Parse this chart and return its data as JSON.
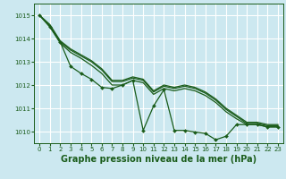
{
  "background_color": "#cce8f0",
  "grid_color": "#ffffff",
  "line_color": "#1a5c1a",
  "xlabel": "Graphe pression niveau de la mer (hPa)",
  "xlim": [
    -0.5,
    23.5
  ],
  "ylim": [
    1009.5,
    1015.5
  ],
  "yticks": [
    1010,
    1011,
    1012,
    1013,
    1014,
    1015
  ],
  "xticks": [
    0,
    1,
    2,
    3,
    4,
    5,
    6,
    7,
    8,
    9,
    10,
    11,
    12,
    13,
    14,
    15,
    16,
    17,
    18,
    19,
    20,
    21,
    22,
    23
  ],
  "line1": [
    1015.0,
    1014.55,
    1013.85,
    1013.5,
    1013.25,
    1013.0,
    1012.65,
    1012.15,
    1012.15,
    1012.3,
    1012.2,
    1011.7,
    1011.95,
    1011.85,
    1011.95,
    1011.85,
    1011.65,
    1011.35,
    1010.95,
    1010.65,
    1010.35,
    1010.35,
    1010.25,
    1010.25
  ],
  "line2": [
    1015.0,
    1014.6,
    1013.9,
    1013.55,
    1013.3,
    1013.05,
    1012.7,
    1012.2,
    1012.2,
    1012.35,
    1012.25,
    1011.75,
    1012.0,
    1011.9,
    1012.0,
    1011.9,
    1011.7,
    1011.4,
    1011.0,
    1010.7,
    1010.4,
    1010.4,
    1010.3,
    1010.3
  ],
  "line3": [
    1015.0,
    1014.5,
    1013.8,
    1013.4,
    1013.15,
    1012.85,
    1012.5,
    1012.0,
    1012.0,
    1012.2,
    1012.1,
    1011.6,
    1011.85,
    1011.75,
    1011.85,
    1011.75,
    1011.55,
    1011.25,
    1010.85,
    1010.55,
    1010.3,
    1010.3,
    1010.2,
    1010.2
  ],
  "line4": [
    1015.0,
    1014.5,
    1013.85,
    1012.8,
    1012.5,
    1012.25,
    1011.9,
    1011.85,
    1012.0,
    1012.2,
    1010.05,
    1011.1,
    1011.8,
    1010.05,
    1010.05,
    1009.98,
    1009.92,
    1009.65,
    1009.8,
    1010.3,
    1010.3,
    1010.3,
    1010.2,
    1010.2
  ]
}
